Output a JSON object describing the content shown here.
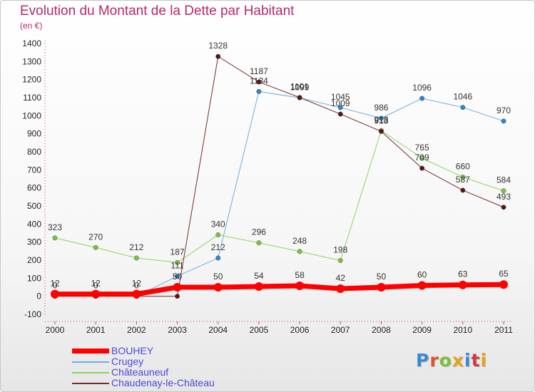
{
  "header": {
    "title": "Evolution du Montant de la Dette par Habitant",
    "unit": "(en €)"
  },
  "logo": {
    "text": "Proxiti",
    "letter_colors": [
      "#3b8ad6",
      "#e0542c",
      "#7bbf3a",
      "#e4a21d",
      "#3b8ad6",
      "#d13a3a",
      "#e4a21d"
    ]
  },
  "chart_data": {
    "type": "line",
    "title": "Evolution du Montant de la Dette par Habitant",
    "ylabel": "(en €)",
    "xlabel": "",
    "ylim": [
      -100,
      1400
    ],
    "yticks": [
      -100,
      0,
      100,
      200,
      300,
      400,
      500,
      600,
      700,
      800,
      900,
      1000,
      1100,
      1200,
      1300,
      1400
    ],
    "x": [
      "2000",
      "2001",
      "2002",
      "2003",
      "2004",
      "2005",
      "2006",
      "2007",
      "2008",
      "2009",
      "2010",
      "2011"
    ],
    "grid": false,
    "legend_position": "bottom-left",
    "series": [
      {
        "name": "Châteauneuf",
        "color": "#8ed45a",
        "point_color": "#7bc443",
        "width": 1,
        "values": [
          323,
          270,
          212,
          187,
          340,
          296,
          248,
          198,
          918,
          765,
          660,
          584
        ]
      },
      {
        "name": "Crugey",
        "color": "#6aaee0",
        "point_color": "#2f86cc",
        "width": 1,
        "values": [
          0,
          0,
          0,
          111,
          212,
          1134,
          1099,
          1045,
          986,
          1096,
          1046,
          970
        ]
      },
      {
        "name": "Chaudenay-le-Château",
        "color": "#7a2a2a",
        "point_color": "#5a1515",
        "width": 1,
        "values": [
          0,
          0,
          0,
          0,
          1328,
          1187,
          1101,
          1009,
          913,
          709,
          587,
          493
        ]
      },
      {
        "name": "BOUHEY",
        "color": "#ff0000",
        "point_color": "#ff0000",
        "width": 7,
        "values": [
          12,
          12,
          12,
          50,
          50,
          54,
          58,
          42,
          50,
          60,
          63,
          65
        ]
      }
    ],
    "labels": [
      {
        "series": "Châteauneuf",
        "points": [
          "323",
          "270",
          "212",
          "187",
          "340",
          "296",
          "248",
          "198",
          "918",
          "765",
          "660",
          "584"
        ]
      },
      {
        "series": "Crugey",
        "points": [
          "0",
          "0",
          "0",
          "111",
          "212",
          "1134",
          "1099",
          "1045",
          "986",
          "1096",
          "1046",
          "970"
        ]
      },
      {
        "series": "Chaudenay-le-Château",
        "points": [
          "",
          "",
          "",
          "",
          "1328",
          "1187",
          "1101",
          "1009",
          "913",
          "709",
          "587",
          "493"
        ]
      },
      {
        "series": "BOUHEY",
        "points": [
          "12",
          "12",
          "12",
          "50",
          "50",
          "54",
          "58",
          "42",
          "50",
          "60",
          "63",
          "65"
        ]
      }
    ],
    "legend": [
      "BOUHEY",
      "Crugey",
      "Châteauneuf",
      "Chaudenay-le-Château"
    ]
  }
}
